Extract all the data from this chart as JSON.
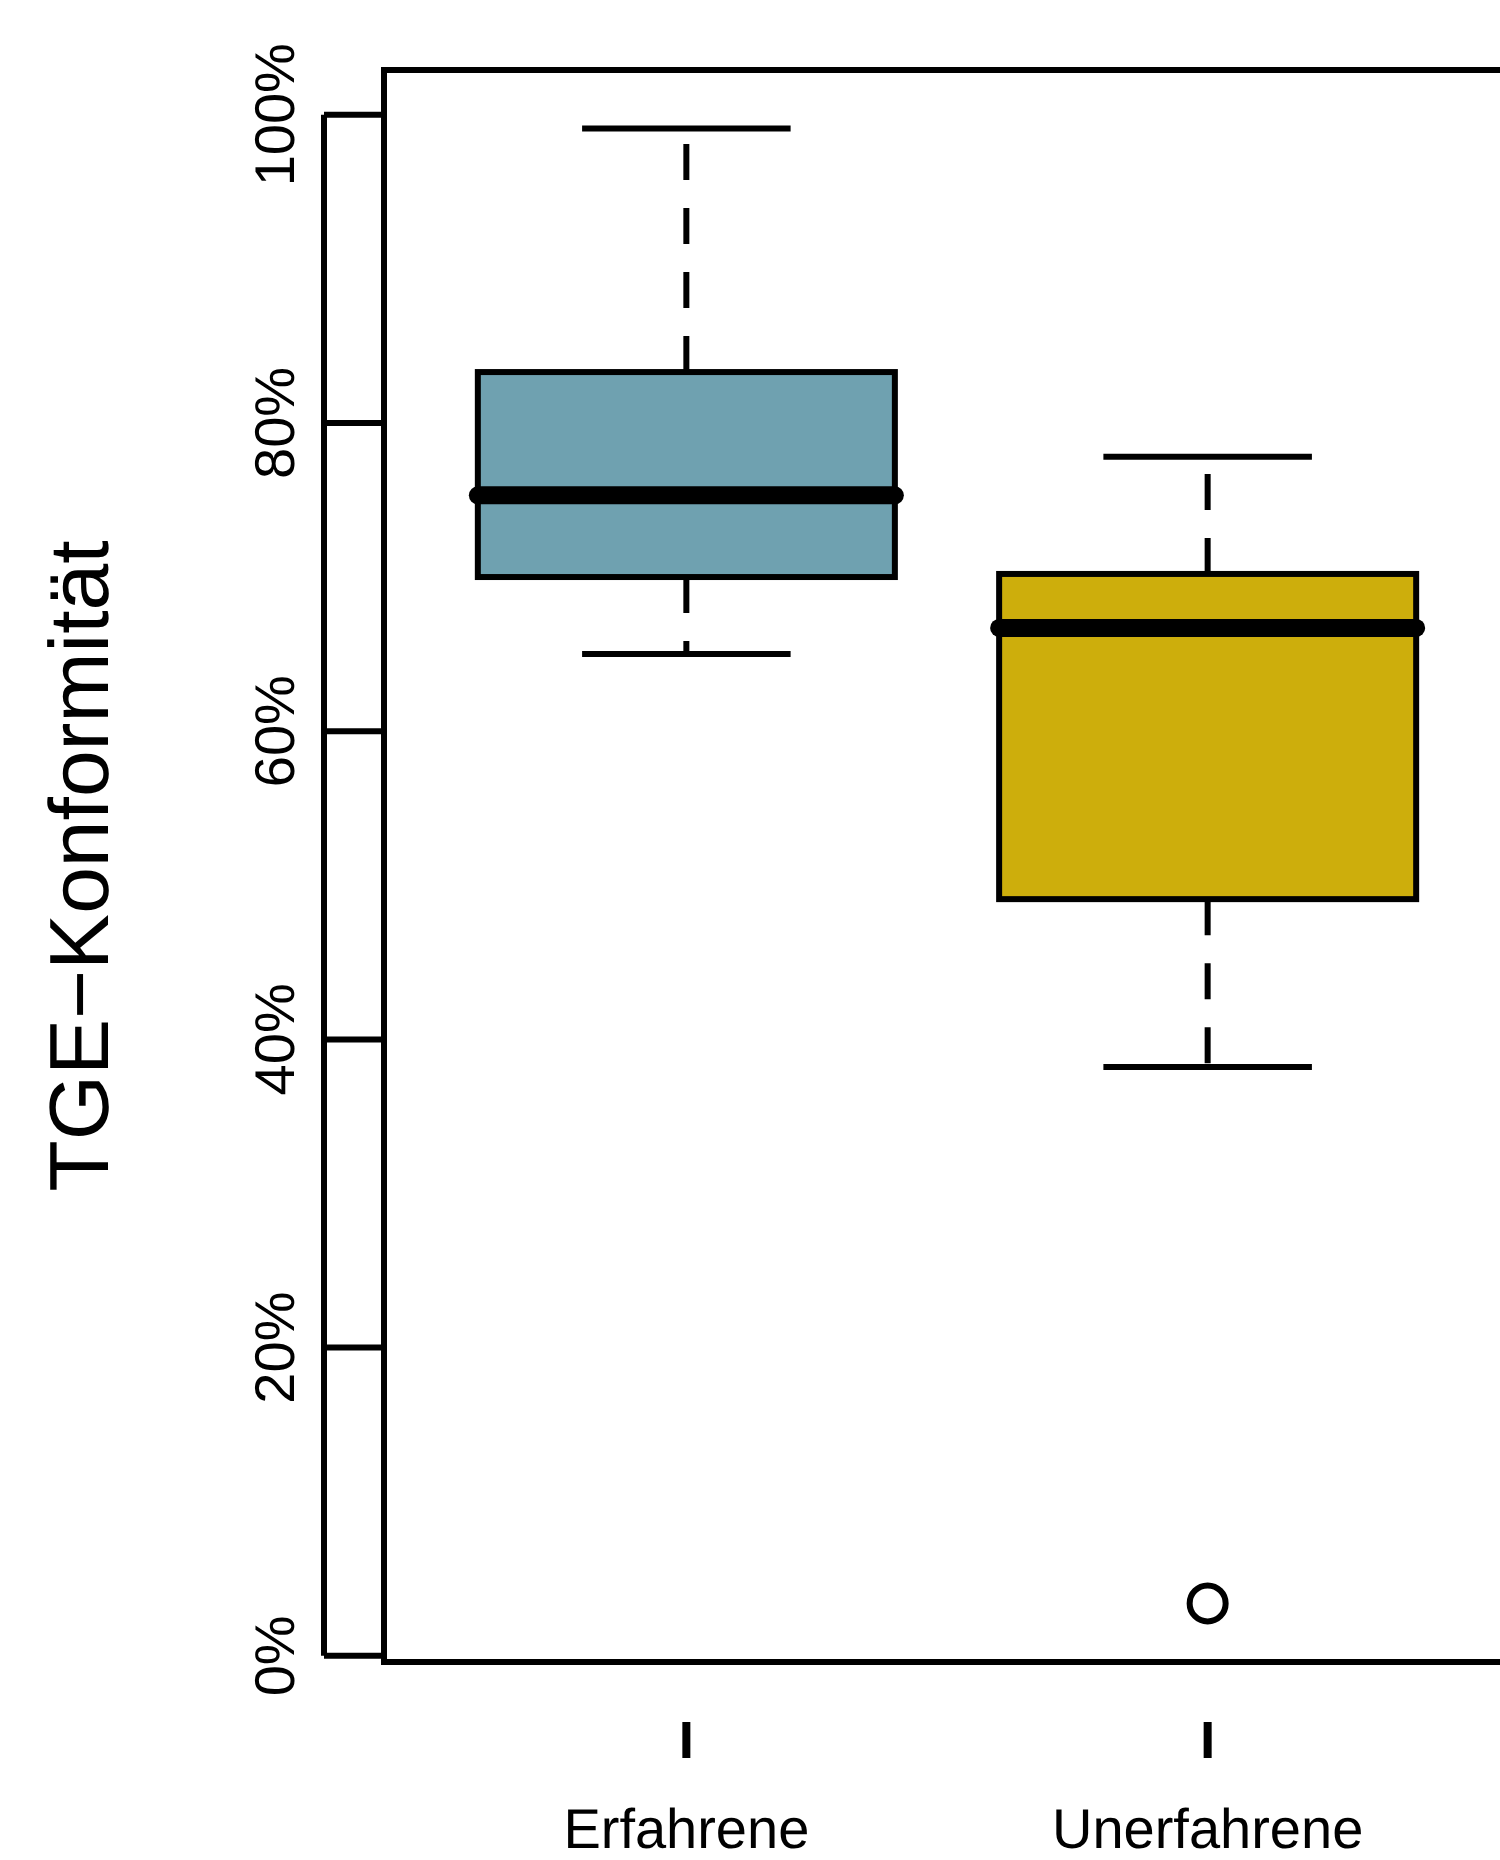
{
  "chart_data": {
    "type": "box",
    "ylabel": "TGE−Konformität",
    "categories": [
      "Erfahrene",
      "Unerfahrene"
    ],
    "colors": [
      "#6fa1b0",
      "#cdae0c"
    ],
    "boxes": [
      {
        "low": 65.0,
        "q1": 70.0,
        "median": 75.3,
        "q3": 83.3,
        "high": 99.1
      },
      {
        "low": 38.2,
        "q1": 49.1,
        "median": 66.7,
        "q3": 70.2,
        "high": 77.8,
        "outliers": [
          3.4
        ]
      }
    ],
    "ylim": [
      -0.4,
      102.9
    ],
    "yticks": [
      {
        "value": 0,
        "label": "0%"
      },
      {
        "value": 20,
        "label": "20%"
      },
      {
        "value": 40,
        "label": "40%"
      },
      {
        "value": 60,
        "label": "60%"
      },
      {
        "value": 80,
        "label": "80%"
      },
      {
        "value": 100,
        "label": "100%"
      }
    ],
    "grid": false
  }
}
